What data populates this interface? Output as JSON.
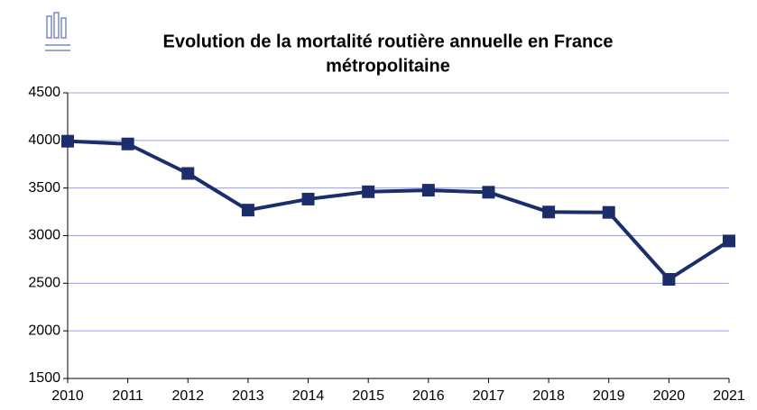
{
  "chart_data": {
    "type": "line",
    "title": [
      "Evolution de la mortalité routière annuelle en France",
      "métropolitaine"
    ],
    "x": [
      2010,
      2011,
      2012,
      2013,
      2014,
      2015,
      2016,
      2017,
      2018,
      2019,
      2020,
      2021
    ],
    "series": [
      {
        "color": "#1c2d6b",
        "values": [
          3992,
          3963,
          3653,
          3268,
          3384,
          3461,
          3477,
          3456,
          3248,
          3244,
          2541,
          2944
        ]
      }
    ],
    "xlim": [
      2010,
      2021
    ],
    "xticks": [
      2010,
      2011,
      2012,
      2013,
      2014,
      2015,
      2016,
      2017,
      2018,
      2019,
      2020,
      2021
    ],
    "ylim": [
      1500,
      4500
    ],
    "yticks": [
      1500,
      2000,
      2500,
      3000,
      3500,
      4000,
      4500
    ],
    "grid": true,
    "grid_color": "#9c9cf0"
  }
}
